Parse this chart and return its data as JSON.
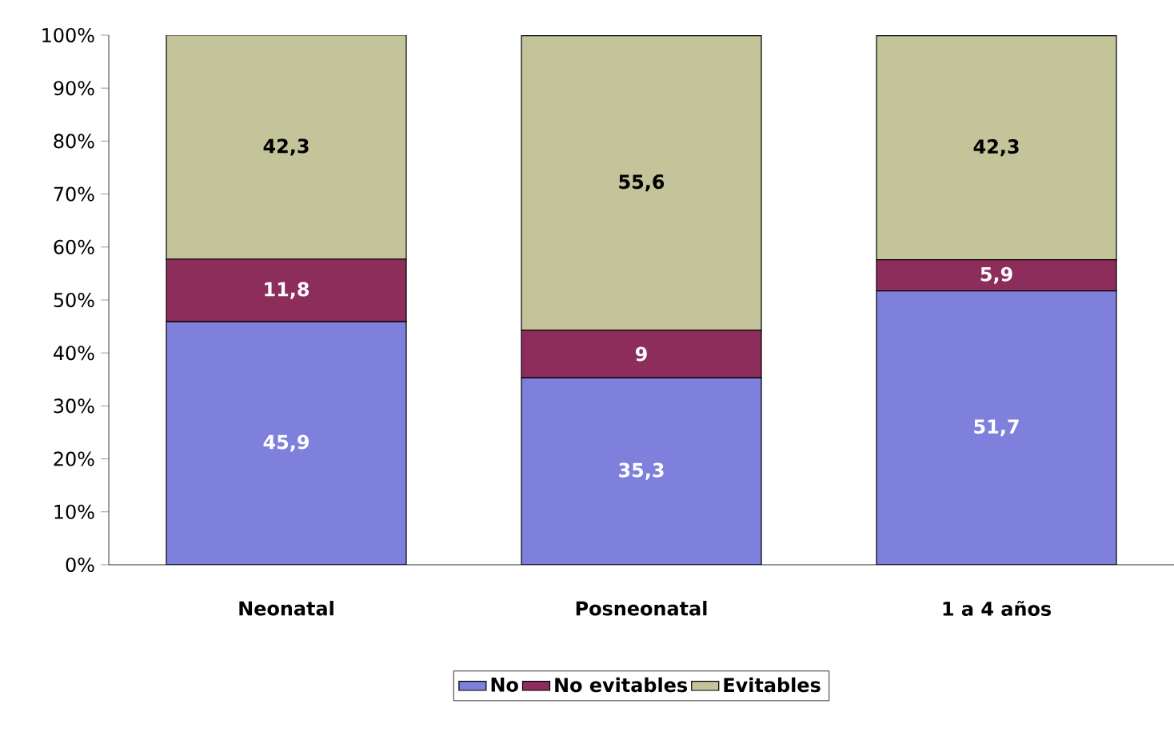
{
  "chart_data": {
    "type": "bar",
    "stacked": true,
    "categories": [
      "Neonatal",
      "Posneonatal",
      "1 a 4 años"
    ],
    "series": [
      {
        "name": "No",
        "color": "#7f7fdc",
        "values": [
          45.9,
          35.3,
          51.7
        ],
        "value_labels": [
          "45,9",
          "35,3",
          "51,7"
        ]
      },
      {
        "name": "No evitables",
        "color": "#8c2d5c",
        "values": [
          11.8,
          9,
          5.9
        ],
        "value_labels": [
          "11,8",
          "9",
          "5,9"
        ]
      },
      {
        "name": "Evitables",
        "color": "#c4c49a",
        "values": [
          42.3,
          55.6,
          42.3
        ],
        "value_labels": [
          "42,3",
          "55,6",
          "42,3"
        ]
      }
    ],
    "ylim": [
      0,
      100
    ],
    "yticks": [
      {
        "value": 0,
        "label": "0%"
      },
      {
        "value": 10,
        "label": "10%"
      },
      {
        "value": 20,
        "label": "20%"
      },
      {
        "value": 30,
        "label": "30%"
      },
      {
        "value": 40,
        "label": "40%"
      },
      {
        "value": 50,
        "label": "50%"
      },
      {
        "value": 60,
        "label": "60%"
      },
      {
        "value": 70,
        "label": "70%"
      },
      {
        "value": 80,
        "label": "80%"
      },
      {
        "value": 90,
        "label": "90%"
      },
      {
        "value": 100,
        "label": "100%"
      }
    ],
    "legend": "bottom",
    "grid": false
  }
}
